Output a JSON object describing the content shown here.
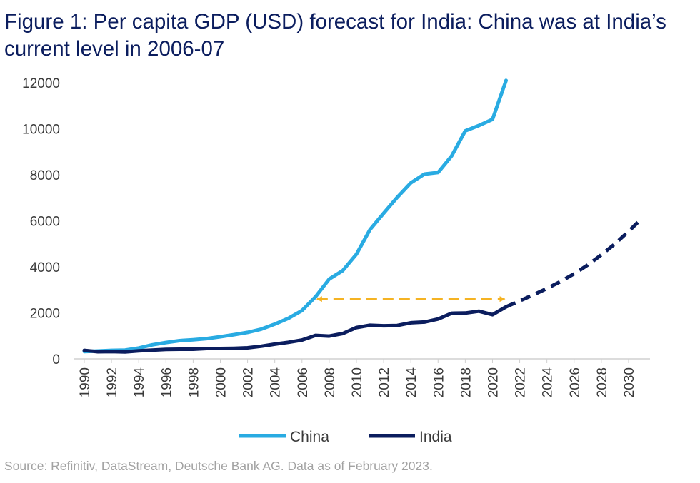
{
  "title": "Figure 1: Per capita GDP (USD) forecast for India: China was at India’s current level in 2006-07",
  "source": "Source: Refinitiv, DataStream, Deutsche Bank AG. Data as of February 2023.",
  "colors": {
    "china": "#29abe2",
    "india": "#0b1d5e",
    "arrow": "#f5b323",
    "title": "#0b1d5e"
  },
  "chart_data": {
    "type": "line",
    "ylim": [
      0,
      12000
    ],
    "yticks": [
      0,
      2000,
      4000,
      6000,
      8000,
      10000,
      12000
    ],
    "xlim": [
      1990,
      2031
    ],
    "xticks": [
      1990,
      1992,
      1994,
      1996,
      1998,
      2000,
      2002,
      2004,
      2006,
      2008,
      2010,
      2012,
      2014,
      2016,
      2018,
      2020,
      2022,
      2024,
      2026,
      2028,
      2030
    ],
    "series": [
      {
        "name": "China",
        "color": "#29abe2",
        "x": [
          1990,
          1991,
          1992,
          1993,
          1994,
          1995,
          1996,
          1997,
          1998,
          1999,
          2000,
          2001,
          2002,
          2003,
          2004,
          2005,
          2006,
          2007,
          2008,
          2009,
          2010,
          2011,
          2012,
          2013,
          2014,
          2015,
          2016,
          2017,
          2018,
          2019,
          2020,
          2021
        ],
        "values": [
          320,
          340,
          370,
          380,
          470,
          610,
          710,
          790,
          830,
          880,
          960,
          1050,
          1150,
          1290,
          1510,
          1760,
          2100,
          2700,
          3470,
          3840,
          4550,
          5620,
          6330,
          7020,
          7650,
          8030,
          8100,
          8820,
          9910,
          10140,
          10410,
          12100
        ]
      },
      {
        "name": "India",
        "color": "#0b1d5e",
        "x": [
          1990,
          1991,
          1992,
          1993,
          1994,
          1995,
          1996,
          1997,
          1998,
          1999,
          2000,
          2001,
          2002,
          2003,
          2004,
          2005,
          2006,
          2007,
          2008,
          2009,
          2010,
          2011,
          2012,
          2013,
          2014,
          2015,
          2016,
          2017,
          2018,
          2019,
          2020,
          2021
        ],
        "values": [
          370,
          310,
          320,
          300,
          350,
          380,
          410,
          420,
          420,
          450,
          450,
          460,
          480,
          550,
          640,
          720,
          820,
          1020,
          990,
          1100,
          1360,
          1460,
          1440,
          1450,
          1570,
          1600,
          1730,
          1980,
          1990,
          2070,
          1920,
          2260
        ]
      },
      {
        "name": "India forecast",
        "style": "dashed",
        "color": "#0b1d5e",
        "x": [
          2021,
          2022,
          2023,
          2024,
          2025,
          2026,
          2027,
          2028,
          2029,
          2030,
          2031
        ],
        "values": [
          2260,
          2520,
          2780,
          3060,
          3360,
          3700,
          4080,
          4520,
          5000,
          5540,
          6120
        ]
      }
    ],
    "annotations": [
      {
        "type": "double-arrow",
        "style": "dashed",
        "x": [
          2007,
          2021
        ],
        "y": 2600,
        "color": "#f5b323"
      }
    ],
    "legend": {
      "position": "bottom",
      "entries": [
        "China",
        "India"
      ]
    }
  }
}
